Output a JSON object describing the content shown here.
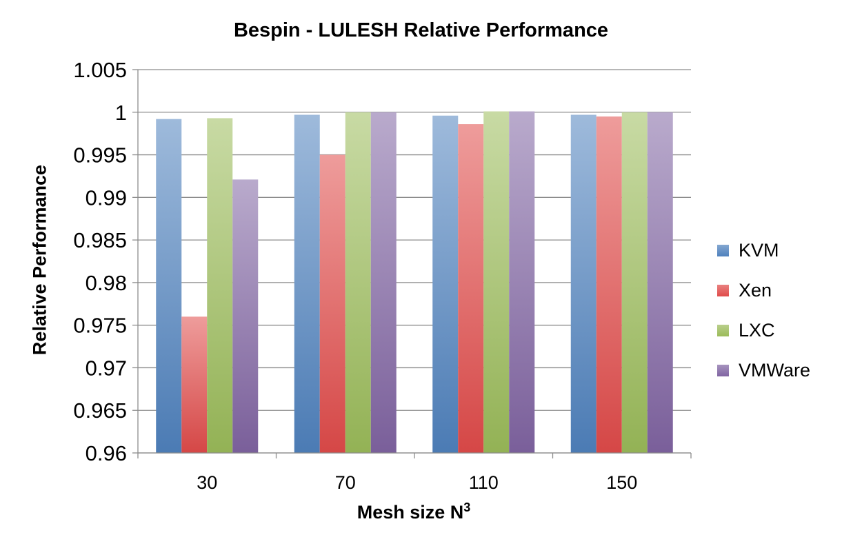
{
  "chart_data": {
    "type": "bar",
    "title": "Bespin - LULESH Relative Performance",
    "xlabel": "Mesh size N",
    "xlabel_superscript": "3",
    "ylabel": "Relative Performance",
    "categories": [
      "30",
      "70",
      "110",
      "150"
    ],
    "ylim": [
      0.96,
      1.005
    ],
    "yticks": [
      "0.96",
      "0.965",
      "0.97",
      "0.975",
      "0.98",
      "0.985",
      "0.99",
      "0.995",
      "1",
      "1.005"
    ],
    "grid": true,
    "legend_position": "right",
    "series": [
      {
        "name": "KVM",
        "color": "#4f81bd",
        "values": [
          0.9992,
          0.9997,
          0.9996,
          0.9997
        ]
      },
      {
        "name": "Xen",
        "color": "#e04b4a",
        "values": [
          0.976,
          0.995,
          0.9986,
          0.9995
        ]
      },
      {
        "name": "LXC",
        "color": "#9bbb59",
        "values": [
          0.9993,
          1.0,
          1.0001,
          1.0
        ]
      },
      {
        "name": "VMWare",
        "color": "#8064a2",
        "values": [
          0.9921,
          1.0,
          1.0001,
          1.0
        ]
      }
    ]
  }
}
